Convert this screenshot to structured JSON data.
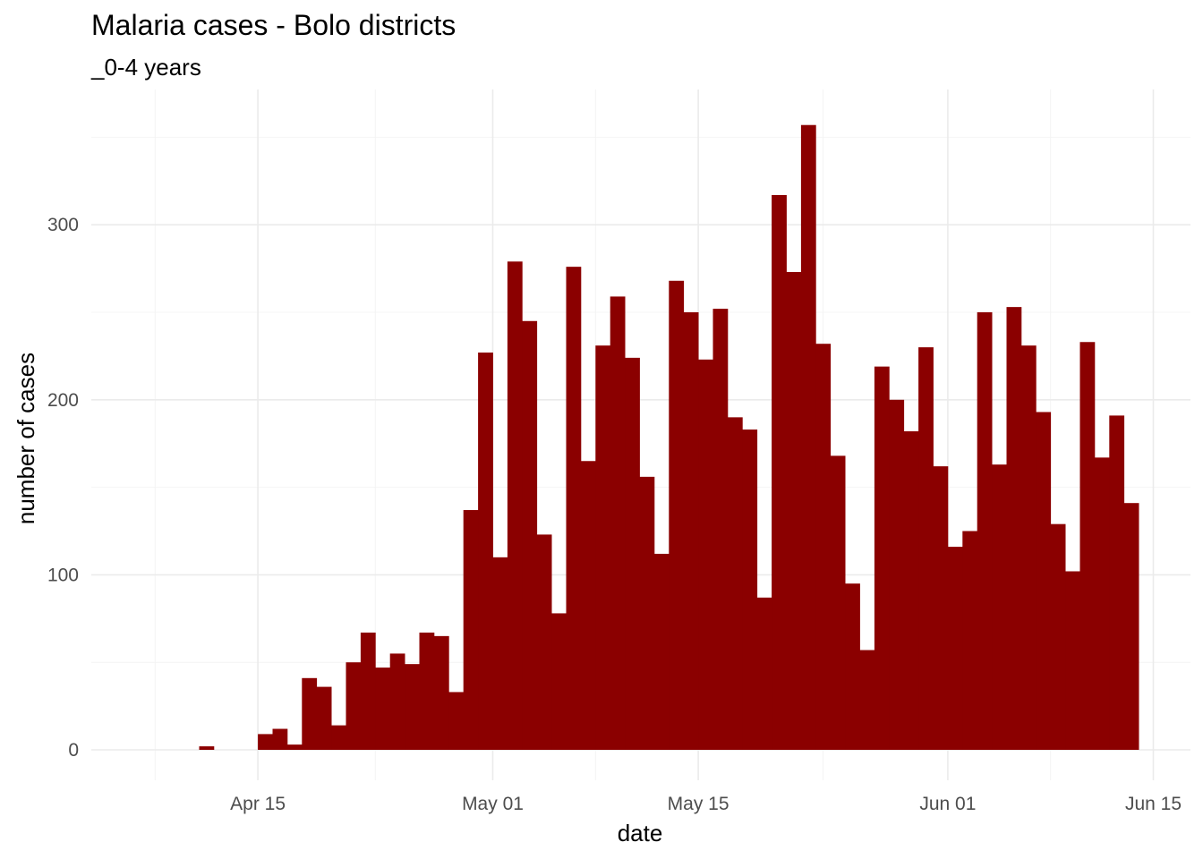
{
  "chart_data": {
    "type": "bar",
    "title": "Malaria cases - Bolo districts",
    "subtitle": "_0-4 years",
    "xlabel": "date",
    "ylabel": "number of cases",
    "x_start_date": "2020-04-11",
    "x_ticks": [
      "Apr 15",
      "May 01",
      "May 15",
      "Jun 01",
      "Jun 15"
    ],
    "y_ticks": [
      "0",
      "100",
      "200",
      "300"
    ],
    "ylim": [
      0,
      370
    ],
    "grid": true,
    "bar_color": "#8B0000",
    "values": [
      2,
      0,
      0,
      0,
      9,
      12,
      3,
      41,
      36,
      14,
      50,
      67,
      47,
      55,
      49,
      67,
      65,
      33,
      137,
      227,
      110,
      279,
      245,
      123,
      78,
      276,
      165,
      231,
      259,
      224,
      156,
      112,
      268,
      250,
      223,
      252,
      190,
      183,
      87,
      317,
      273,
      357,
      232,
      168,
      95,
      57,
      219,
      200,
      182,
      230,
      162,
      116,
      125,
      250,
      163,
      253,
      231,
      193,
      129,
      102,
      233,
      167,
      191,
      141
    ]
  }
}
